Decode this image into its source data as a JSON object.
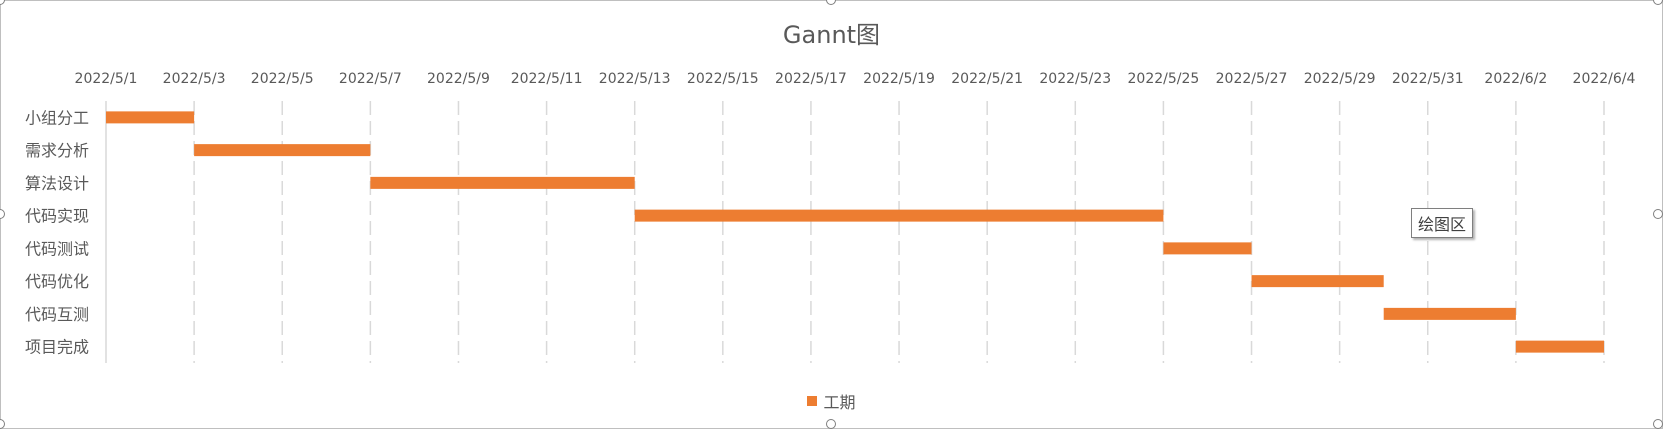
{
  "chart_data": {
    "type": "bar",
    "orientation": "horizontal",
    "stacked_gantt": true,
    "title": "Gannt图",
    "x_tick_labels": [
      "2022/5/1",
      "2022/5/3",
      "2022/5/5",
      "2022/5/7",
      "2022/5/9",
      "2022/5/11",
      "2022/5/13",
      "2022/5/15",
      "2022/5/17",
      "2022/5/19",
      "2022/5/21",
      "2022/5/23",
      "2022/5/25",
      "2022/5/27",
      "2022/5/29",
      "2022/5/31",
      "2022/6/2",
      "2022/6/4"
    ],
    "x_axis_position": "top",
    "xlim": [
      "2022/5/1",
      "2022/6/4"
    ],
    "categories": [
      "小组分工",
      "需求分析",
      "算法设计",
      "代码实现",
      "代码测试",
      "代码优化",
      "代码互测",
      "项目完成"
    ],
    "series": [
      {
        "name": "工期",
        "color": "#ED7D31",
        "start": [
          "2022/5/1",
          "2022/5/3",
          "2022/5/7",
          "2022/5/13",
          "2022/5/25",
          "2022/5/27",
          "2022/5/30",
          "2022/6/2"
        ],
        "end": [
          "2022/5/3",
          "2022/5/7",
          "2022/5/13",
          "2022/5/25",
          "2022/5/27",
          "2022/5/30",
          "2022/6/2",
          "2022/6/4"
        ]
      }
    ],
    "grid": true,
    "legend_position": "bottom"
  },
  "legend": {
    "label": "工期",
    "color": "#ED7D31"
  },
  "tooltip": {
    "text": "绘图区"
  },
  "colors": {
    "grid": "#d9d9d9",
    "text": "#595959",
    "frame": "#bfbfbf"
  }
}
